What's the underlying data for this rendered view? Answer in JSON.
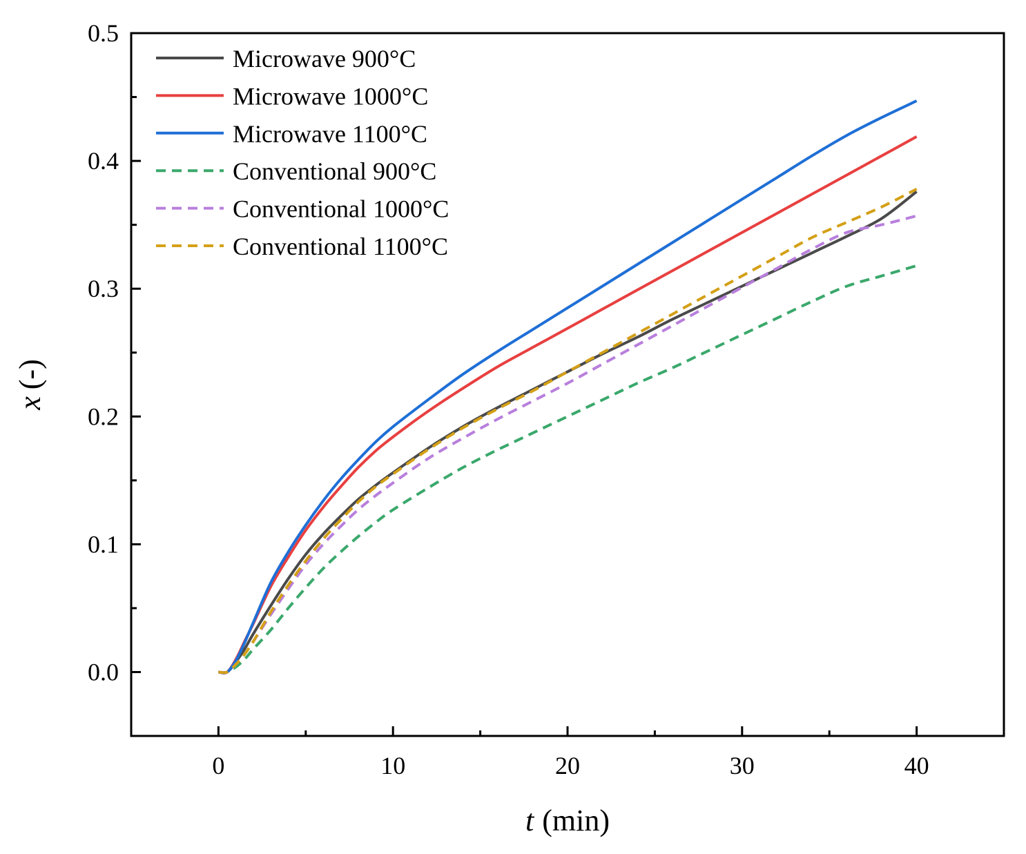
{
  "chart_data": {
    "type": "line",
    "title": "",
    "xlabel": {
      "var": "t",
      "unit": "(min)"
    },
    "ylabel": {
      "var": "x",
      "unit": "(-)"
    },
    "xlim": [
      -5,
      45
    ],
    "ylim": [
      -0.05,
      0.5
    ],
    "xticks": [
      0,
      10,
      20,
      30,
      40
    ],
    "xtick_labels": [
      "0",
      "10",
      "20",
      "30",
      "40"
    ],
    "yticks": [
      0.0,
      0.1,
      0.2,
      0.3,
      0.4,
      0.5
    ],
    "ytick_labels": [
      "0.0",
      "0.1",
      "0.2",
      "0.3",
      "0.4",
      "0.5"
    ],
    "grid": false,
    "legend_position": "top-left",
    "x": [
      0,
      0.5,
      1,
      1.5,
      2,
      3,
      4,
      5,
      6,
      7,
      8,
      9,
      10,
      12,
      14,
      16,
      18,
      20,
      22,
      24,
      26,
      28,
      30,
      32,
      34,
      36,
      38,
      40
    ],
    "series": [
      {
        "name": "Microwave 900°C",
        "color": "#4a4a4a",
        "dash": "solid",
        "values": [
          0,
          0,
          0.008,
          0.018,
          0.03,
          0.052,
          0.073,
          0.092,
          0.108,
          0.122,
          0.135,
          0.146,
          0.156,
          0.175,
          0.192,
          0.207,
          0.221,
          0.235,
          0.249,
          0.262,
          0.276,
          0.289,
          0.302,
          0.315,
          0.328,
          0.341,
          0.355,
          0.376
        ]
      },
      {
        "name": "Microwave 1000°C",
        "color": "#e84040",
        "dash": "solid",
        "values": [
          0,
          0,
          0.01,
          0.024,
          0.038,
          0.067,
          0.09,
          0.111,
          0.129,
          0.145,
          0.16,
          0.173,
          0.184,
          0.204,
          0.222,
          0.239,
          0.254,
          0.269,
          0.284,
          0.299,
          0.314,
          0.329,
          0.344,
          0.359,
          0.374,
          0.389,
          0.404,
          0.419
        ]
      },
      {
        "name": "Microwave 1100°C",
        "color": "#1f6fd6",
        "dash": "solid",
        "values": [
          0,
          0,
          0.009,
          0.023,
          0.039,
          0.07,
          0.094,
          0.115,
          0.134,
          0.151,
          0.166,
          0.18,
          0.192,
          0.213,
          0.233,
          0.251,
          0.268,
          0.285,
          0.302,
          0.319,
          0.336,
          0.353,
          0.37,
          0.387,
          0.404,
          0.42,
          0.434,
          0.447
        ]
      },
      {
        "name": "Conventional 900°C",
        "color": "#3aa86b",
        "dash": "dashed",
        "values": [
          0,
          0,
          0.004,
          0.01,
          0.018,
          0.033,
          0.05,
          0.066,
          0.081,
          0.094,
          0.106,
          0.117,
          0.127,
          0.144,
          0.16,
          0.174,
          0.187,
          0.2,
          0.213,
          0.226,
          0.238,
          0.251,
          0.264,
          0.277,
          0.29,
          0.302,
          0.31,
          0.318
        ]
      },
      {
        "name": "Conventional 1000°C",
        "color": "#b87fdc",
        "dash": "dashed",
        "values": [
          0,
          0,
          0.006,
          0.014,
          0.024,
          0.045,
          0.065,
          0.084,
          0.1,
          0.114,
          0.127,
          0.138,
          0.148,
          0.167,
          0.183,
          0.198,
          0.212,
          0.226,
          0.241,
          0.256,
          0.271,
          0.286,
          0.301,
          0.316,
          0.331,
          0.344,
          0.35,
          0.357
        ]
      },
      {
        "name": "Conventional 1100°C",
        "color": "#d4a017",
        "dash": "dashed",
        "values": [
          0,
          0,
          0.006,
          0.014,
          0.024,
          0.047,
          0.068,
          0.087,
          0.104,
          0.119,
          0.133,
          0.145,
          0.155,
          0.174,
          0.191,
          0.206,
          0.22,
          0.235,
          0.25,
          0.265,
          0.28,
          0.295,
          0.31,
          0.325,
          0.34,
          0.352,
          0.364,
          0.378
        ]
      }
    ]
  }
}
